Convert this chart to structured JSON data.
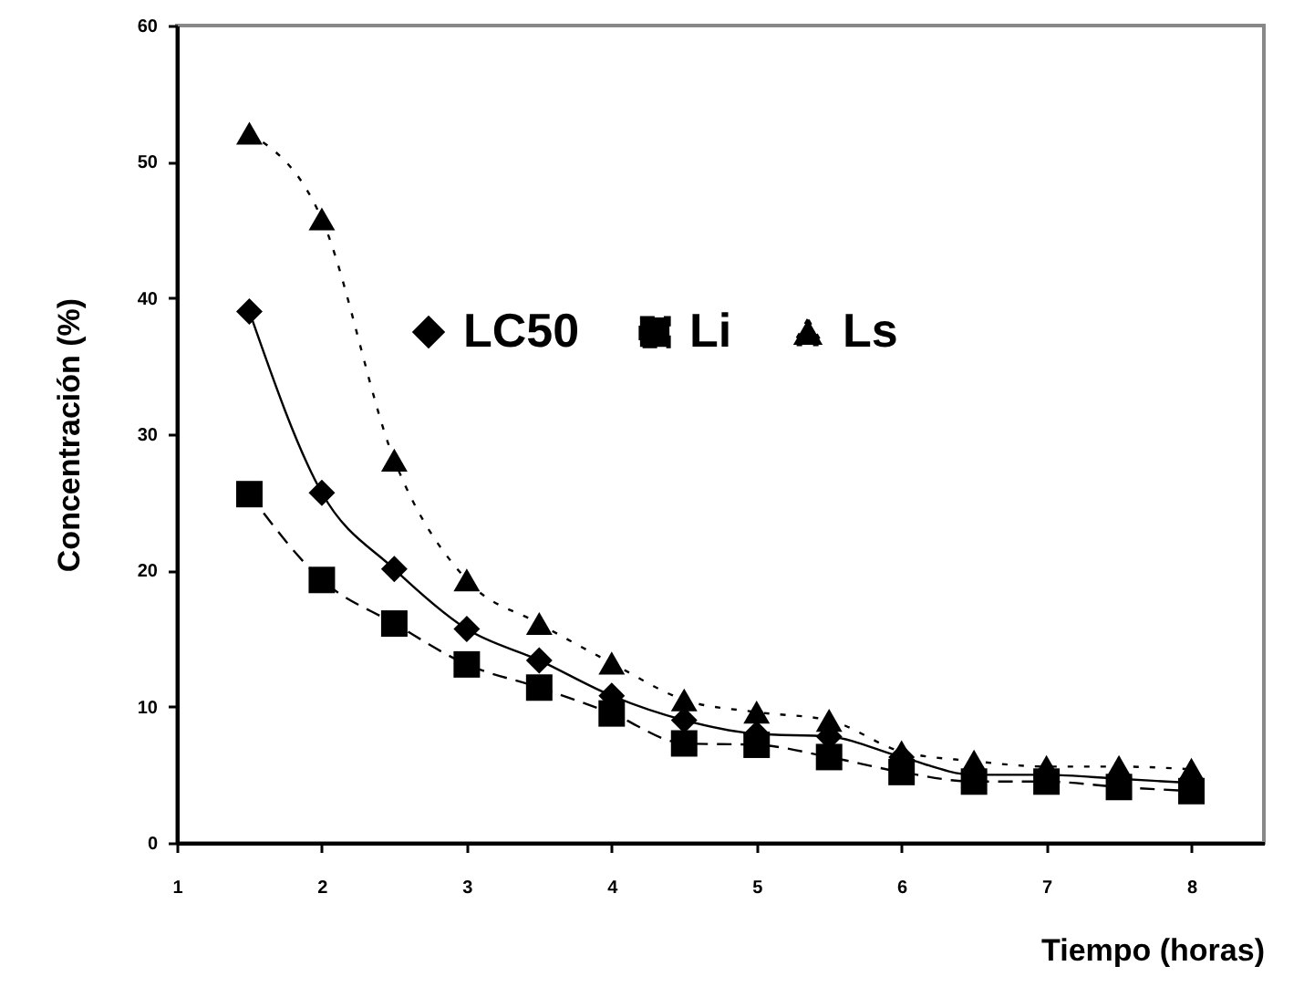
{
  "chart_data": {
    "type": "line",
    "xlabel": "Tiempo (horas)",
    "ylabel": "Concentración (%)",
    "x": [
      1.5,
      2,
      2.5,
      3,
      3.5,
      4,
      4.5,
      5,
      5.5,
      6,
      6.5,
      7,
      7.5,
      8
    ],
    "series": [
      {
        "name": "LC50",
        "color": "#000000",
        "marker": "diamond",
        "line_style": "solid",
        "values": [
          39.0,
          25.7,
          20.1,
          15.7,
          13.4,
          10.8,
          9.0,
          8.0,
          7.8,
          6.3,
          5.0,
          5.0,
          4.7,
          4.4
        ]
      },
      {
        "name": "Li",
        "color": "#000000",
        "marker": "square",
        "line_style": "dashed",
        "values": [
          25.6,
          19.3,
          16.1,
          13.1,
          11.4,
          9.5,
          7.3,
          7.2,
          6.3,
          5.2,
          4.5,
          4.5,
          4.1,
          3.8
        ]
      },
      {
        "name": "Ls",
        "color": "#000000",
        "marker": "triangle",
        "line_style": "dotted",
        "values": [
          52.1,
          45.8,
          28.1,
          19.3,
          16.1,
          13.2,
          10.5,
          9.6,
          9.0,
          6.7,
          6.0,
          5.6,
          5.6,
          5.4
        ]
      }
    ],
    "xlim": [
      1,
      8.5
    ],
    "xticks": [
      1,
      2,
      3,
      4,
      5,
      6,
      7,
      8
    ],
    "ylim": [
      0,
      60
    ],
    "yticks": [
      0,
      10,
      20,
      30,
      40,
      50,
      60
    ],
    "grid": false,
    "legend": "top"
  }
}
